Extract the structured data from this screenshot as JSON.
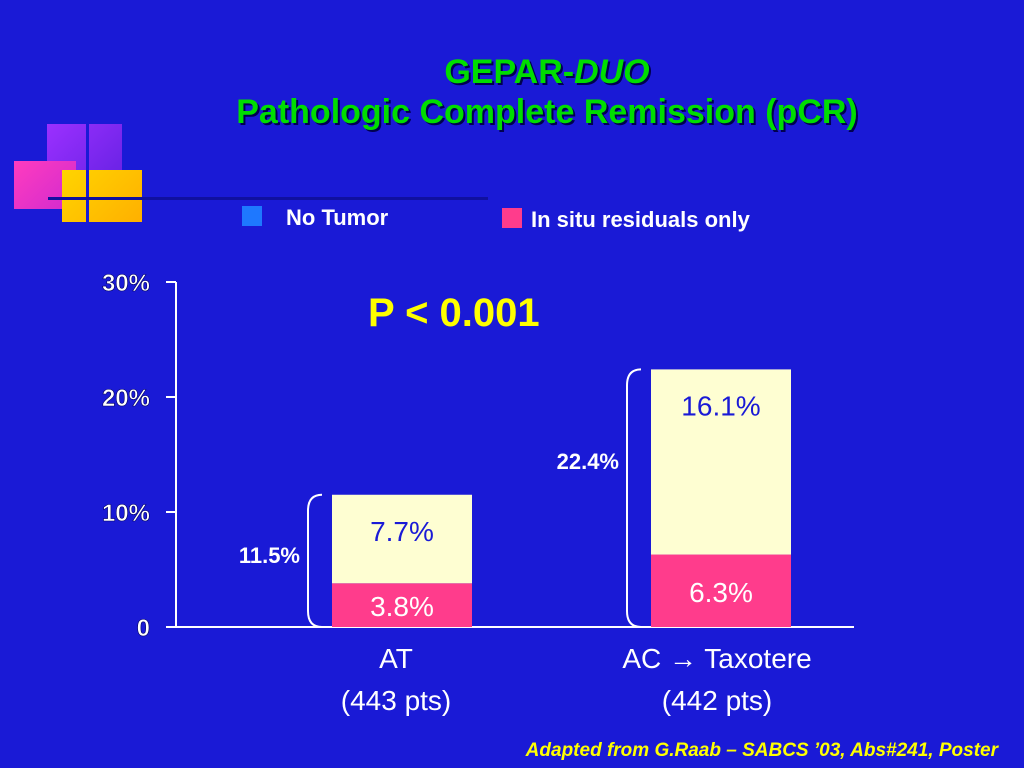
{
  "title": {
    "line1_plain": "GEPAR-",
    "line1_italic": "DUO",
    "line2": "Pathologic Complete Remission (pCR)"
  },
  "colors": {
    "background": "#1a1ad6",
    "title": "#00dd00",
    "no_tumor": "#fefed2",
    "in_situ": "#ff3c8c",
    "legend_no_tumor_swatch": "#1e78ff",
    "legend_in_situ_swatch": "#ff3c8c",
    "pvalue": "#ffff00",
    "footer": "#ffff00",
    "segment_label": "#1a1ad6"
  },
  "pvalue": "P < 0.001",
  "footer": "Adapted from G.Raab – SABCS ’03, Abs#241, Poster",
  "chart_data": {
    "type": "bar",
    "stacked": true,
    "categories": [
      {
        "line1": "AT",
        "line2": "(443 pts)"
      },
      {
        "line1": "AC → Taxotere",
        "line2": "(442 pts)"
      }
    ],
    "series": [
      {
        "name": "In situ residuals only",
        "values": [
          3.8,
          6.3
        ],
        "labels": [
          "3.8%",
          "6.3%"
        ]
      },
      {
        "name": "No Tumor",
        "values": [
          7.7,
          16.1
        ],
        "labels": [
          "7.7%",
          "16.1%"
        ]
      }
    ],
    "totals": [
      11.5,
      22.4
    ],
    "total_labels": [
      "11.5%",
      "22.4%"
    ],
    "ylim": [
      0,
      30
    ],
    "yticks": [
      0,
      10,
      20,
      30
    ],
    "ytick_labels": [
      "0",
      "10%",
      "20%",
      "30%"
    ],
    "xlabel": "",
    "ylabel": "",
    "legend_position": "top"
  }
}
